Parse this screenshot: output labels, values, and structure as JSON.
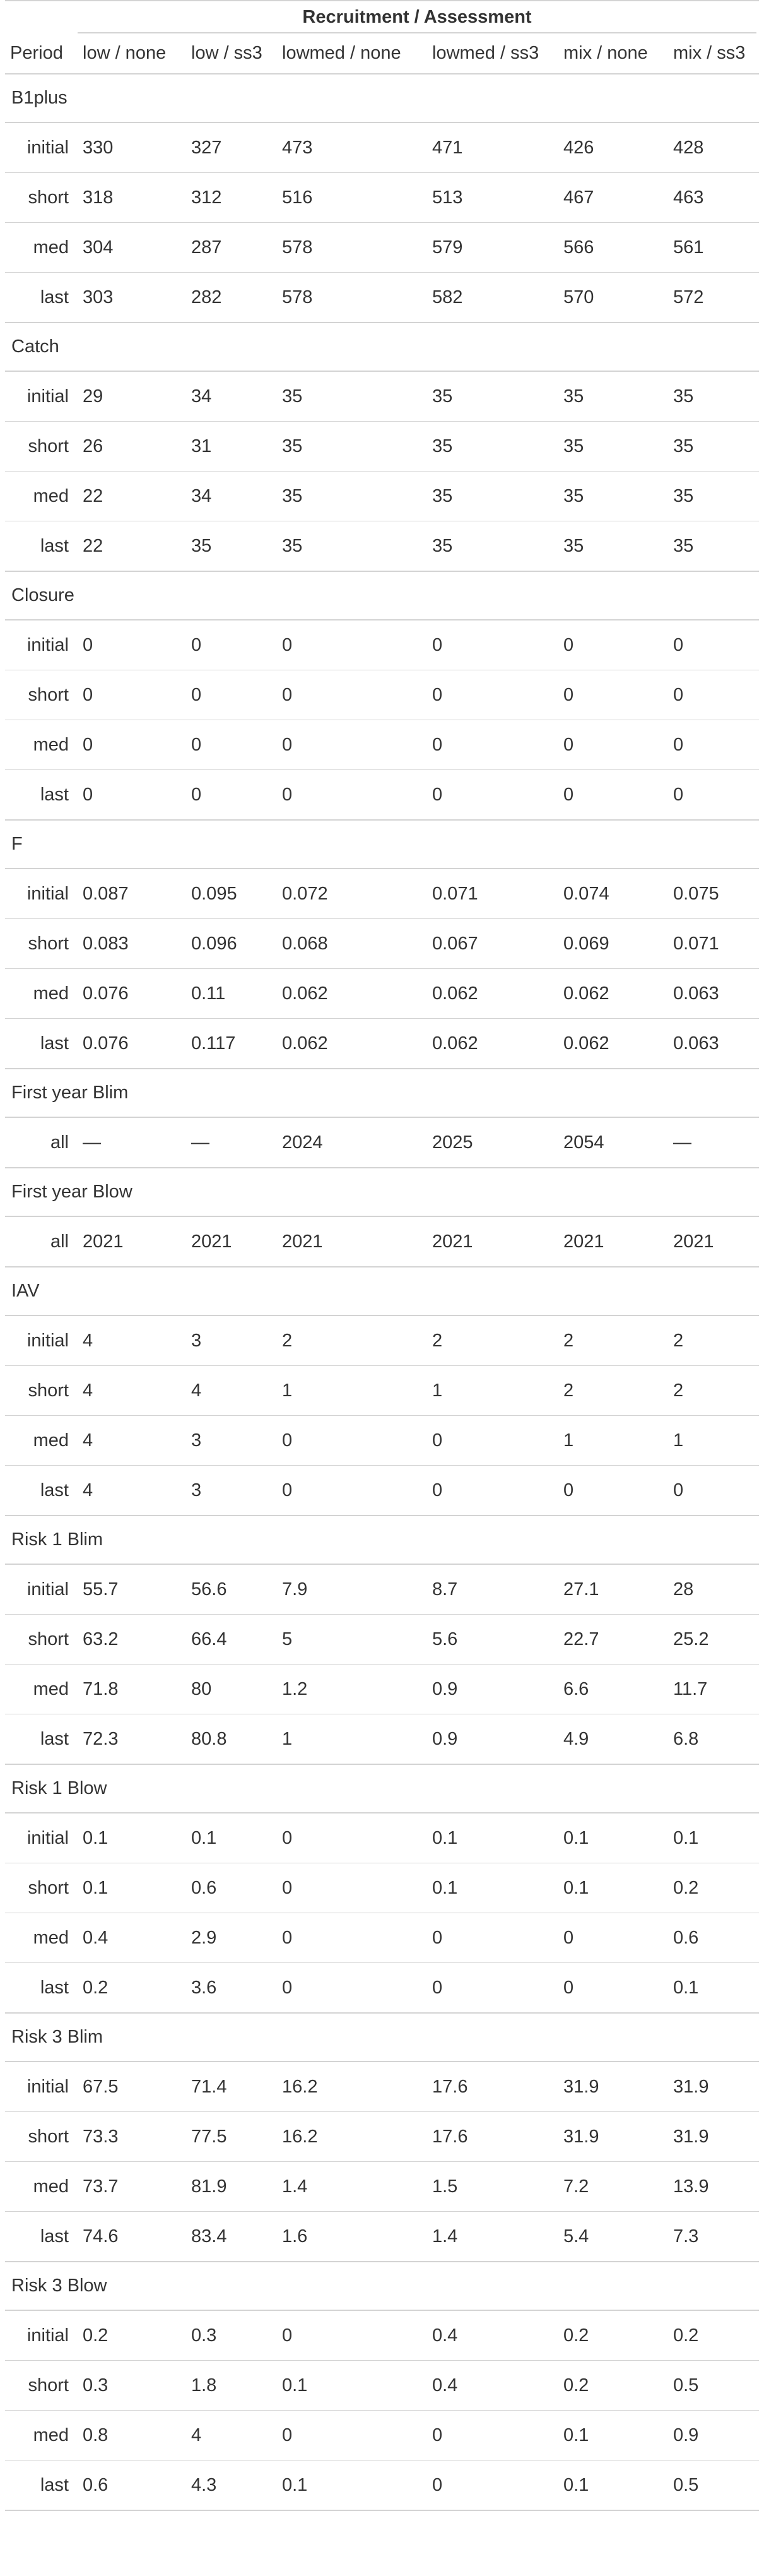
{
  "table": {
    "spanner": "Recruitment / Assessment",
    "headers": [
      "Period",
      "low / none",
      "low / ss3",
      "lowmed / none",
      "lowmed / ss3",
      "mix / none",
      "mix / ss3"
    ],
    "groups": [
      {
        "name": "B1plus",
        "rows": [
          [
            "initial",
            "330",
            "327",
            "473",
            "471",
            "426",
            "428"
          ],
          [
            "short",
            "318",
            "312",
            "516",
            "513",
            "467",
            "463"
          ],
          [
            "med",
            "304",
            "287",
            "578",
            "579",
            "566",
            "561"
          ],
          [
            "last",
            "303",
            "282",
            "578",
            "582",
            "570",
            "572"
          ]
        ]
      },
      {
        "name": "Catch",
        "rows": [
          [
            "initial",
            "29",
            "34",
            "35",
            "35",
            "35",
            "35"
          ],
          [
            "short",
            "26",
            "31",
            "35",
            "35",
            "35",
            "35"
          ],
          [
            "med",
            "22",
            "34",
            "35",
            "35",
            "35",
            "35"
          ],
          [
            "last",
            "22",
            "35",
            "35",
            "35",
            "35",
            "35"
          ]
        ]
      },
      {
        "name": "Closure",
        "rows": [
          [
            "initial",
            "0",
            "0",
            "0",
            "0",
            "0",
            "0"
          ],
          [
            "short",
            "0",
            "0",
            "0",
            "0",
            "0",
            "0"
          ],
          [
            "med",
            "0",
            "0",
            "0",
            "0",
            "0",
            "0"
          ],
          [
            "last",
            "0",
            "0",
            "0",
            "0",
            "0",
            "0"
          ]
        ]
      },
      {
        "name": "F",
        "rows": [
          [
            "initial",
            "0.087",
            "0.095",
            "0.072",
            "0.071",
            "0.074",
            "0.075"
          ],
          [
            "short",
            "0.083",
            "0.096",
            "0.068",
            "0.067",
            "0.069",
            "0.071"
          ],
          [
            "med",
            "0.076",
            "0.11",
            "0.062",
            "0.062",
            "0.062",
            "0.063"
          ],
          [
            "last",
            "0.076",
            "0.117",
            "0.062",
            "0.062",
            "0.062",
            "0.063"
          ]
        ]
      },
      {
        "name": "First year Blim",
        "rows": [
          [
            "all",
            "—",
            "—",
            "2024",
            "2025",
            "2054",
            "—"
          ]
        ]
      },
      {
        "name": "First year Blow",
        "rows": [
          [
            "all",
            "2021",
            "2021",
            "2021",
            "2021",
            "2021",
            "2021"
          ]
        ]
      },
      {
        "name": "IAV",
        "rows": [
          [
            "initial",
            "4",
            "3",
            "2",
            "2",
            "2",
            "2"
          ],
          [
            "short",
            "4",
            "4",
            "1",
            "1",
            "2",
            "2"
          ],
          [
            "med",
            "4",
            "3",
            "0",
            "0",
            "1",
            "1"
          ],
          [
            "last",
            "4",
            "3",
            "0",
            "0",
            "0",
            "0"
          ]
        ]
      },
      {
        "name": "Risk 1 Blim",
        "rows": [
          [
            "initial",
            "55.7",
            "56.6",
            "7.9",
            "8.7",
            "27.1",
            "28"
          ],
          [
            "short",
            "63.2",
            "66.4",
            "5",
            "5.6",
            "22.7",
            "25.2"
          ],
          [
            "med",
            "71.8",
            "80",
            "1.2",
            "0.9",
            "6.6",
            "11.7"
          ],
          [
            "last",
            "72.3",
            "80.8",
            "1",
            "0.9",
            "4.9",
            "6.8"
          ]
        ]
      },
      {
        "name": "Risk 1 Blow",
        "rows": [
          [
            "initial",
            "0.1",
            "0.1",
            "0",
            "0.1",
            "0.1",
            "0.1"
          ],
          [
            "short",
            "0.1",
            "0.6",
            "0",
            "0.1",
            "0.1",
            "0.2"
          ],
          [
            "med",
            "0.4",
            "2.9",
            "0",
            "0",
            "0",
            "0.6"
          ],
          [
            "last",
            "0.2",
            "3.6",
            "0",
            "0",
            "0",
            "0.1"
          ]
        ]
      },
      {
        "name": "Risk 3 Blim",
        "rows": [
          [
            "initial",
            "67.5",
            "71.4",
            "16.2",
            "17.6",
            "31.9",
            "31.9"
          ],
          [
            "short",
            "73.3",
            "77.5",
            "16.2",
            "17.6",
            "31.9",
            "31.9"
          ],
          [
            "med",
            "73.7",
            "81.9",
            "1.4",
            "1.5",
            "7.2",
            "13.9"
          ],
          [
            "last",
            "74.6",
            "83.4",
            "1.6",
            "1.4",
            "5.4",
            "7.3"
          ]
        ]
      },
      {
        "name": "Risk 3 Blow",
        "rows": [
          [
            "initial",
            "0.2",
            "0.3",
            "0",
            "0.4",
            "0.2",
            "0.2"
          ],
          [
            "short",
            "0.3",
            "1.8",
            "0.1",
            "0.4",
            "0.2",
            "0.5"
          ],
          [
            "med",
            "0.8",
            "4",
            "0",
            "0",
            "0.1",
            "0.9"
          ],
          [
            "last",
            "0.6",
            "4.3",
            "0.1",
            "0",
            "0.1",
            "0.5"
          ]
        ]
      }
    ]
  }
}
